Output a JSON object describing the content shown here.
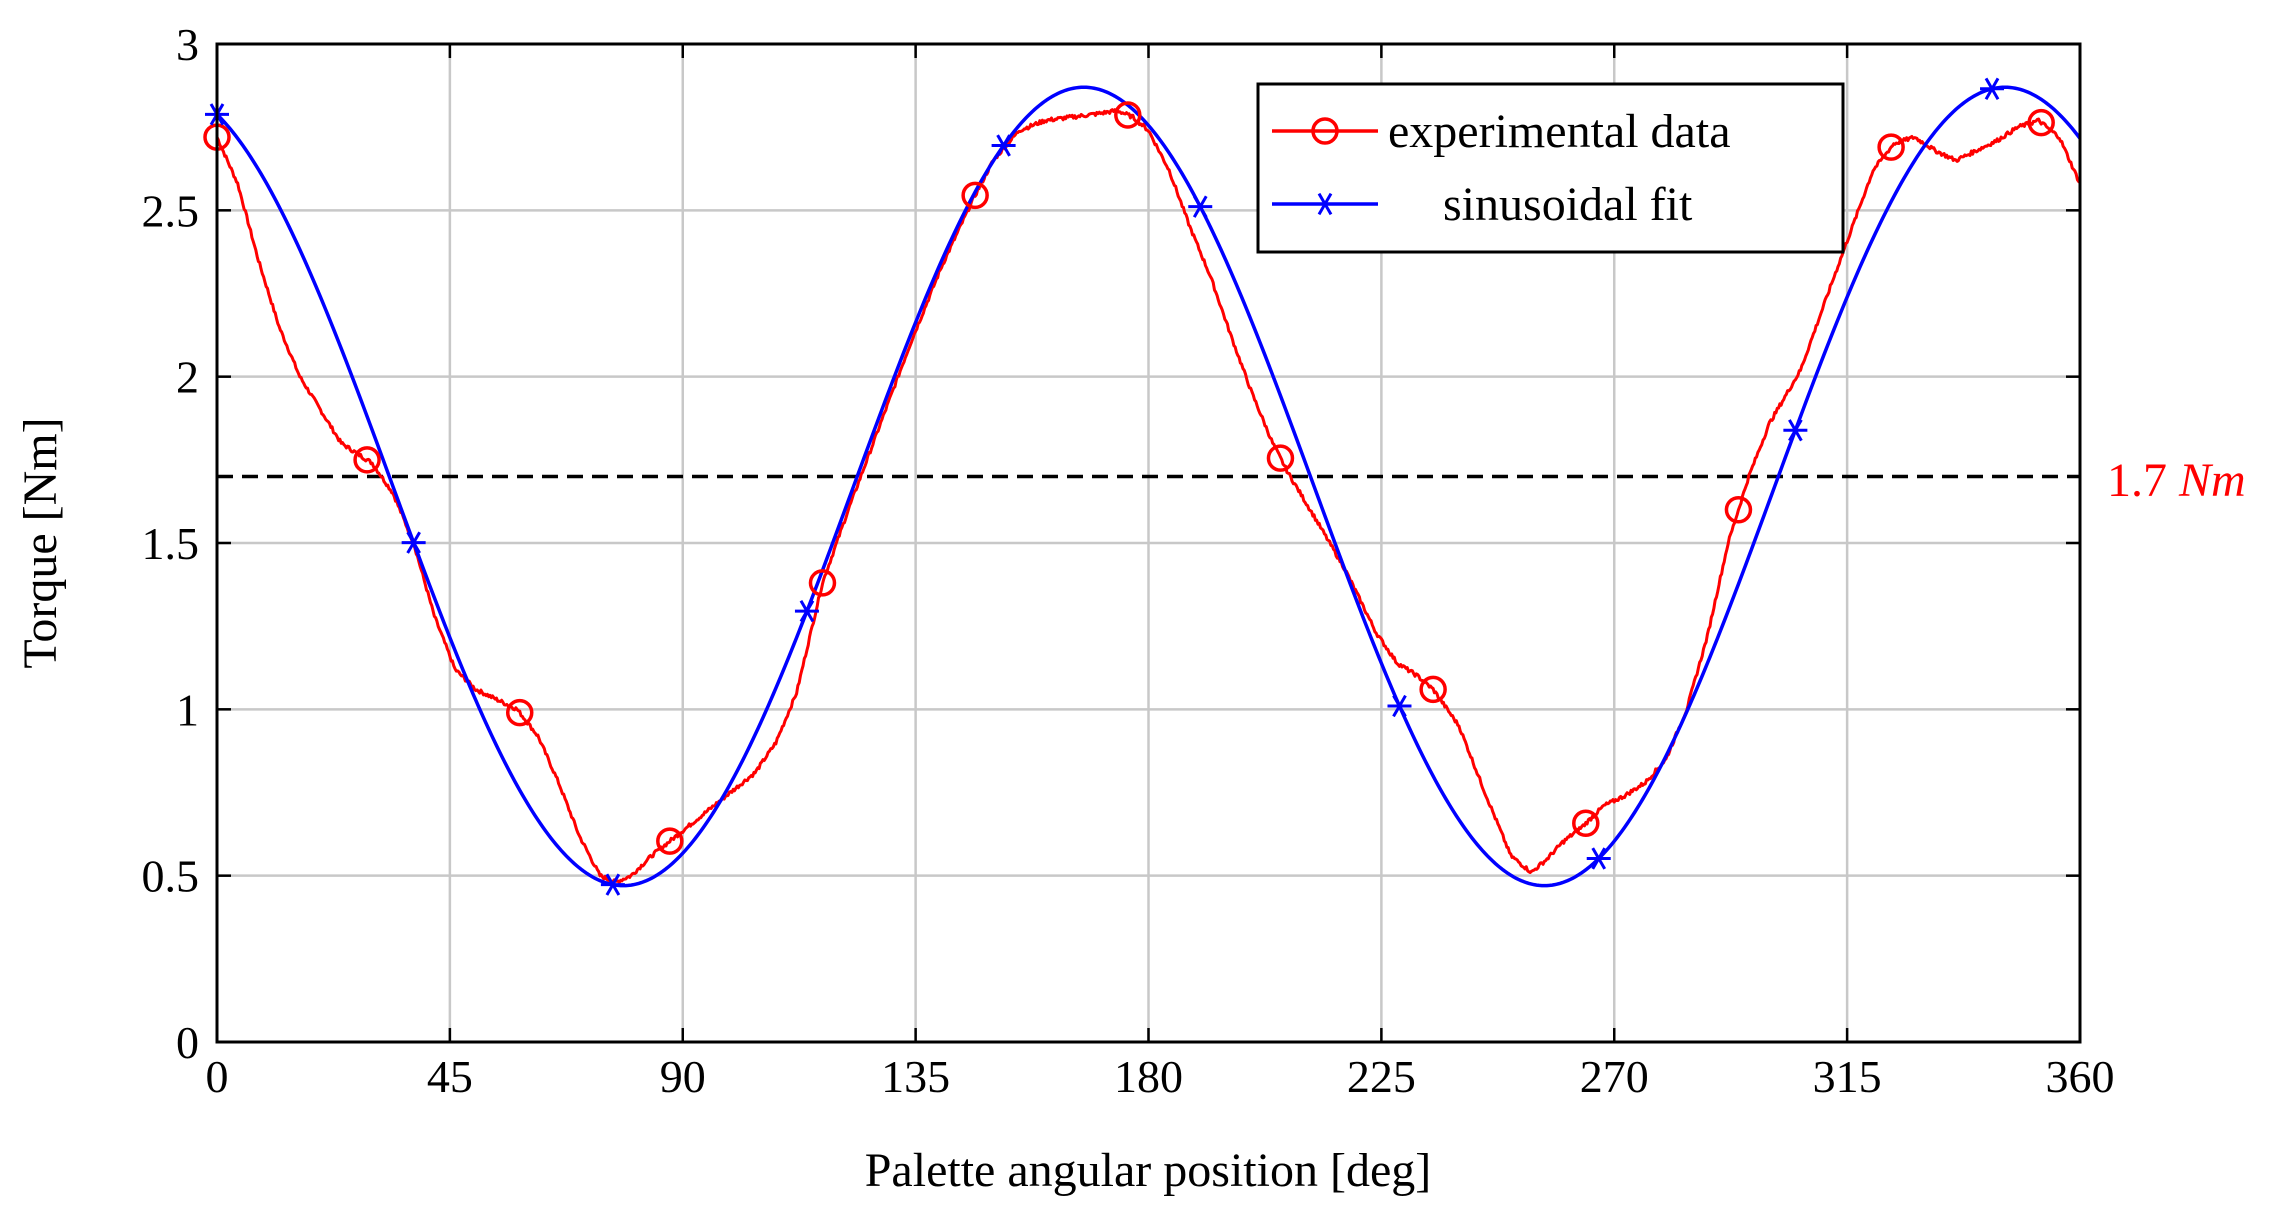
{
  "chart_data": {
    "type": "line",
    "title": "",
    "xlabel": "Palette angular position [deg]",
    "ylabel": "Torque [Nm]",
    "xlim": [
      0,
      360
    ],
    "ylim": [
      0,
      3
    ],
    "xticks": [
      0,
      45,
      90,
      135,
      180,
      225,
      270,
      315,
      360
    ],
    "yticks": [
      0,
      0.5,
      1,
      1.5,
      2,
      2.5,
      3
    ],
    "ytick_labels": [
      "0",
      "0.5",
      "1",
      "1.5",
      "2",
      "2.5",
      "3"
    ],
    "grid": true,
    "legend_position": "top-right",
    "colors": {
      "experimental": "#ff0000",
      "fit": "#0000ff",
      "reference": "#000000",
      "reference_label": "#ff0000"
    },
    "reference_line": {
      "y": 1.7,
      "label_value": "1.7 ",
      "label_unit": "Nm",
      "style": "dashed"
    },
    "series": [
      {
        "name": "experimental data",
        "marker": "circle",
        "x": [
          0,
          4,
          8,
          12,
          16,
          20,
          24,
          28,
          30,
          34,
          38,
          42,
          46,
          50,
          54,
          58,
          62,
          66,
          70,
          74,
          77,
          80,
          84,
          88,
          92,
          96,
          100,
          104,
          108,
          112,
          117,
          122,
          128,
          134,
          140,
          146,
          150,
          155,
          160,
          165,
          170,
          174,
          177,
          180,
          184,
          188,
          192,
          196,
          200,
          204,
          207,
          212,
          218,
          224,
          228,
          232,
          235,
          240,
          245,
          250,
          254,
          257,
          260,
          264,
          268,
          272,
          276,
          280,
          284,
          288,
          292,
          296,
          300,
          306,
          312,
          316,
          320,
          324,
          328,
          332,
          336,
          340,
          344,
          348,
          352,
          356,
          360
        ],
        "y": [
          2.72,
          2.58,
          2.35,
          2.15,
          2.0,
          1.9,
          1.8,
          1.76,
          1.74,
          1.65,
          1.5,
          1.28,
          1.12,
          1.06,
          1.03,
          1.0,
          0.92,
          0.78,
          0.62,
          0.5,
          0.48,
          0.5,
          0.56,
          0.61,
          0.66,
          0.71,
          0.76,
          0.81,
          0.9,
          1.05,
          1.38,
          1.6,
          1.85,
          2.1,
          2.33,
          2.53,
          2.65,
          2.74,
          2.77,
          2.78,
          2.79,
          2.8,
          2.78,
          2.74,
          2.62,
          2.45,
          2.3,
          2.12,
          1.95,
          1.8,
          1.71,
          1.58,
          1.42,
          1.23,
          1.14,
          1.1,
          1.06,
          0.95,
          0.75,
          0.56,
          0.51,
          0.55,
          0.6,
          0.65,
          0.71,
          0.74,
          0.78,
          0.85,
          1.0,
          1.22,
          1.5,
          1.7,
          1.86,
          2.02,
          2.28,
          2.45,
          2.62,
          2.7,
          2.72,
          2.68,
          2.65,
          2.68,
          2.71,
          2.75,
          2.77,
          2.72,
          2.58
        ]
      },
      {
        "name": "sinusoidal fit",
        "marker": "star",
        "offset": 1.67,
        "amplitude": 1.2,
        "period": 178,
        "peak_at": 167.5,
        "x": [
          0,
          38,
          76.5,
          114,
          152,
          190,
          228.5,
          267,
          305,
          343
        ]
      }
    ],
    "markers_x": {
      "experimental data": [
        0,
        29,
        58.5,
        87.5,
        117,
        146.5,
        176,
        205.5,
        235,
        264.5,
        294,
        323.5,
        352.5
      ]
    }
  }
}
